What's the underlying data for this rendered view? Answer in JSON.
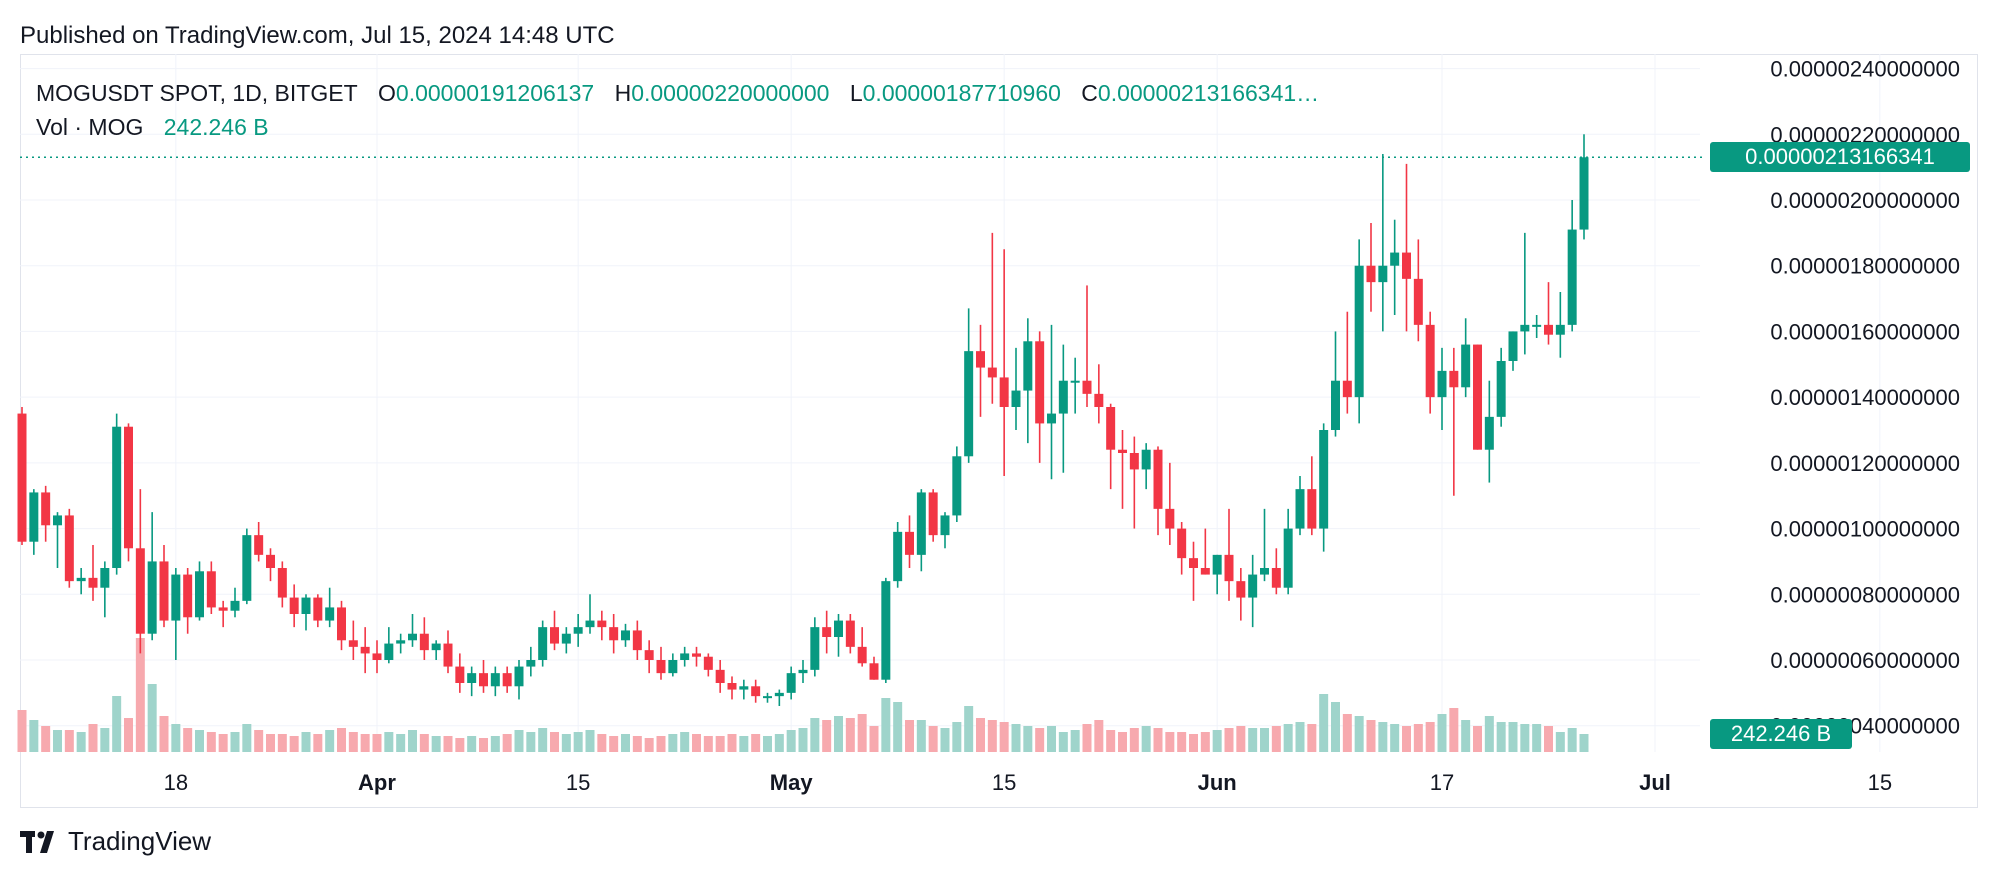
{
  "header": {
    "published": "Published on TradingView.com, Jul 15, 2024 14:48 UTC"
  },
  "legend": {
    "symbol": "MOGUSDT SPOT, 1D, BITGET",
    "open_label": "O",
    "open": "0.0000019120613​7",
    "high_label": "H",
    "high": "0.00000220000000",
    "low_label": "L",
    "low": "0.00000187710960",
    "close_label": "C",
    "close": "0.00000213166341…",
    "vol_label": "Vol · MOG",
    "vol": "242.246 B"
  },
  "last_price_tag": "0.00000213166341",
  "last_volume_tag": "242.246 B",
  "brand": {
    "name": "TradingView"
  },
  "colors": {
    "up": "#089981",
    "down": "#f23645",
    "vol_up": "#9fd4cb",
    "vol_down": "#f7a9ae",
    "grid": "#f0f3fa",
    "axis_text": "#131722"
  },
  "chart_data": {
    "type": "candlestick",
    "title": "",
    "ylim": [
      3.2e-07,
      2.42e-06
    ],
    "y_ticks": [
      "0.00000240000000",
      "0.00000220000000",
      "0.00000200000000",
      "0.00000180000000",
      "0.00000160000000",
      "0.00000140000000",
      "0.00000120000000",
      "0.00000100000000",
      "0.00000080000000",
      "0.00000060000000",
      "0.00000040000000"
    ],
    "x_labels": [
      "18",
      "Apr",
      "15",
      "May",
      "15",
      "Jun",
      "17",
      "Jul",
      "15"
    ],
    "candles": [
      [
        1.35e-06,
        1.37e-06,
        9.5e-07,
        9.6e-07,
        21
      ],
      [
        9.6e-07,
        1.12e-06,
        9.2e-07,
        1.11e-06,
        16
      ],
      [
        1.11e-06,
        1.13e-06,
        9.6e-07,
        1.01e-06,
        13
      ],
      [
        1.01e-06,
        1.05e-06,
        8.8e-07,
        1.04e-06,
        11
      ],
      [
        1.04e-06,
        1.06e-06,
        8.2e-07,
        8.4e-07,
        11
      ],
      [
        8.4e-07,
        8.8e-07,
        8e-07,
        8.5e-07,
        10
      ],
      [
        8.5e-07,
        9.5e-07,
        7.8e-07,
        8.2e-07,
        14
      ],
      [
        8.2e-07,
        9e-07,
        7.3e-07,
        8.8e-07,
        12
      ],
      [
        8.8e-07,
        1.35e-06,
        8.6e-07,
        1.31e-06,
        28
      ],
      [
        1.31e-06,
        1.32e-06,
        9e-07,
        9.4e-07,
        17
      ],
      [
        9.4e-07,
        1.12e-06,
        6.2e-07,
        6.8e-07,
        57
      ],
      [
        6.8e-07,
        1.05e-06,
        6.6e-07,
        9e-07,
        34
      ],
      [
        9e-07,
        9.5e-07,
        7e-07,
        7.2e-07,
        18
      ],
      [
        7.2e-07,
        8.8e-07,
        6e-07,
        8.6e-07,
        14
      ],
      [
        8.6e-07,
        8.8e-07,
        6.8e-07,
        7.3e-07,
        12
      ],
      [
        7.3e-07,
        9e-07,
        7.2e-07,
        8.7e-07,
        11
      ],
      [
        8.7e-07,
        9e-07,
        7.4e-07,
        7.6e-07,
        10
      ],
      [
        7.6e-07,
        7.8e-07,
        7e-07,
        7.5e-07,
        9
      ],
      [
        7.5e-07,
        8.2e-07,
        7.3e-07,
        7.8e-07,
        10
      ],
      [
        7.8e-07,
        1e-06,
        7.7e-07,
        9.8e-07,
        14
      ],
      [
        9.8e-07,
        1.02e-06,
        9e-07,
        9.2e-07,
        11
      ],
      [
        9.2e-07,
        9.4e-07,
        8.4e-07,
        8.8e-07,
        9
      ],
      [
        8.8e-07,
        9e-07,
        7.6e-07,
        7.9e-07,
        9
      ],
      [
        7.9e-07,
        8.3e-07,
        7e-07,
        7.4e-07,
        8
      ],
      [
        7.4e-07,
        8e-07,
        6.9e-07,
        7.9e-07,
        10
      ],
      [
        7.9e-07,
        8e-07,
        7e-07,
        7.2e-07,
        9
      ],
      [
        7.2e-07,
        8.2e-07,
        7e-07,
        7.6e-07,
        11
      ],
      [
        7.6e-07,
        7.8e-07,
        6.3e-07,
        6.6e-07,
        12
      ],
      [
        6.6e-07,
        7.2e-07,
        6e-07,
        6.4e-07,
        10
      ],
      [
        6.4e-07,
        7e-07,
        5.6e-07,
        6.2e-07,
        9
      ],
      [
        6.2e-07,
        6.6e-07,
        5.6e-07,
        6e-07,
        9
      ],
      [
        6e-07,
        7e-07,
        5.9e-07,
        6.5e-07,
        10
      ],
      [
        6.5e-07,
        6.8e-07,
        6.2e-07,
        6.6e-07,
        9
      ],
      [
        6.6e-07,
        7.4e-07,
        6.4e-07,
        6.8e-07,
        11
      ],
      [
        6.8e-07,
        7.3e-07,
        6e-07,
        6.3e-07,
        9
      ],
      [
        6.3e-07,
        6.6e-07,
        6e-07,
        6.5e-07,
        8
      ],
      [
        6.5e-07,
        6.9e-07,
        5.6e-07,
        5.8e-07,
        8
      ],
      [
        5.8e-07,
        6.2e-07,
        5e-07,
        5.3e-07,
        7
      ],
      [
        5.3e-07,
        5.8e-07,
        4.9e-07,
        5.6e-07,
        8
      ],
      [
        5.6e-07,
        6e-07,
        5e-07,
        5.2e-07,
        7
      ],
      [
        5.2e-07,
        5.8e-07,
        4.9e-07,
        5.6e-07,
        8
      ],
      [
        5.6e-07,
        5.8e-07,
        5e-07,
        5.2e-07,
        9
      ],
      [
        5.2e-07,
        6e-07,
        4.8e-07,
        5.8e-07,
        11
      ],
      [
        5.8e-07,
        6.4e-07,
        5.5e-07,
        6e-07,
        10
      ],
      [
        6e-07,
        7.2e-07,
        5.8e-07,
        7e-07,
        12
      ],
      [
        7e-07,
        7.5e-07,
        6.3e-07,
        6.5e-07,
        10
      ],
      [
        6.5e-07,
        7e-07,
        6.2e-07,
        6.8e-07,
        9
      ],
      [
        6.8e-07,
        7.4e-07,
        6.4e-07,
        7e-07,
        10
      ],
      [
        7e-07,
        8e-07,
        6.8e-07,
        7.2e-07,
        11
      ],
      [
        7.2e-07,
        7.5e-07,
        6.6e-07,
        7e-07,
        9
      ],
      [
        7e-07,
        7.4e-07,
        6.2e-07,
        6.6e-07,
        8
      ],
      [
        6.6e-07,
        7.1e-07,
        6.4e-07,
        6.9e-07,
        9
      ],
      [
        6.9e-07,
        7.2e-07,
        6e-07,
        6.3e-07,
        8
      ],
      [
        6.3e-07,
        6.6e-07,
        5.6e-07,
        6e-07,
        7
      ],
      [
        6e-07,
        6.4e-07,
        5.4e-07,
        5.6e-07,
        8
      ],
      [
        5.6e-07,
        6.2e-07,
        5.5e-07,
        6e-07,
        9
      ],
      [
        6e-07,
        6.4e-07,
        5.8e-07,
        6.2e-07,
        10
      ],
      [
        6.2e-07,
        6.4e-07,
        5.8e-07,
        6.1e-07,
        9
      ],
      [
        6.1e-07,
        6.2e-07,
        5.5e-07,
        5.7e-07,
        8
      ],
      [
        5.7e-07,
        6e-07,
        5e-07,
        5.3e-07,
        8
      ],
      [
        5.3e-07,
        5.5e-07,
        4.8e-07,
        5.1e-07,
        9
      ],
      [
        5.1e-07,
        5.4e-07,
        4.8e-07,
        5.2e-07,
        8
      ],
      [
        5.2e-07,
        5.4e-07,
        4.7e-07,
        4.9e-07,
        9
      ],
      [
        4.9e-07,
        5e-07,
        4.7e-07,
        4.9e-07,
        8
      ],
      [
        4.9e-07,
        5.1e-07,
        4.6e-07,
        5e-07,
        9
      ],
      [
        5e-07,
        5.8e-07,
        4.8e-07,
        5.6e-07,
        11
      ],
      [
        5.6e-07,
        6e-07,
        5.3e-07,
        5.7e-07,
        12
      ],
      [
        5.7e-07,
        7.3e-07,
        5.5e-07,
        7e-07,
        17
      ],
      [
        7e-07,
        7.5e-07,
        6.2e-07,
        6.7e-07,
        16
      ],
      [
        6.7e-07,
        7.4e-07,
        6.1e-07,
        7.2e-07,
        18
      ],
      [
        7.2e-07,
        7.4e-07,
        6.2e-07,
        6.4e-07,
        17
      ],
      [
        6.4e-07,
        7e-07,
        5.8e-07,
        5.9e-07,
        19
      ],
      [
        5.9e-07,
        6.1e-07,
        5.4e-07,
        5.4e-07,
        13
      ],
      [
        5.4e-07,
        8.5e-07,
        5.3e-07,
        8.4e-07,
        27
      ],
      [
        8.4e-07,
        1.02e-06,
        8.2e-07,
        9.9e-07,
        25
      ],
      [
        9.9e-07,
        1.04e-06,
        8.8e-07,
        9.2e-07,
        16
      ],
      [
        9.2e-07,
        1.12e-06,
        8.7e-07,
        1.11e-06,
        16
      ],
      [
        1.11e-06,
        1.12e-06,
        9.6e-07,
        9.8e-07,
        13
      ],
      [
        9.8e-07,
        1.05e-06,
        9.4e-07,
        1.04e-06,
        12
      ],
      [
        1.04e-06,
        1.25e-06,
        1.02e-06,
        1.22e-06,
        15
      ],
      [
        1.22e-06,
        1.67e-06,
        1.2e-06,
        1.54e-06,
        23
      ],
      [
        1.54e-06,
        1.62e-06,
        1.34e-06,
        1.49e-06,
        17
      ],
      [
        1.49e-06,
        1.9e-06,
        1.38e-06,
        1.46e-06,
        16
      ],
      [
        1.46e-06,
        1.85e-06,
        1.16e-06,
        1.37e-06,
        15
      ],
      [
        1.37e-06,
        1.55e-06,
        1.3e-06,
        1.42e-06,
        14
      ],
      [
        1.42e-06,
        1.64e-06,
        1.26e-06,
        1.57e-06,
        13
      ],
      [
        1.57e-06,
        1.6e-06,
        1.2e-06,
        1.32e-06,
        12
      ],
      [
        1.32e-06,
        1.62e-06,
        1.15e-06,
        1.35e-06,
        13
      ],
      [
        1.35e-06,
        1.56e-06,
        1.17e-06,
        1.45e-06,
        10
      ],
      [
        1.45e-06,
        1.52e-06,
        1.35e-06,
        1.45e-06,
        11
      ],
      [
        1.45e-06,
        1.74e-06,
        1.37e-06,
        1.41e-06,
        14
      ],
      [
        1.41e-06,
        1.5e-06,
        1.32e-06,
        1.37e-06,
        16
      ],
      [
        1.37e-06,
        1.38e-06,
        1.12e-06,
        1.24e-06,
        11
      ],
      [
        1.24e-06,
        1.3e-06,
        1.06e-06,
        1.23e-06,
        10
      ],
      [
        1.23e-06,
        1.28e-06,
        1e-06,
        1.18e-06,
        12
      ],
      [
        1.18e-06,
        1.26e-06,
        1.12e-06,
        1.24e-06,
        13
      ],
      [
        1.24e-06,
        1.25e-06,
        9.8e-07,
        1.06e-06,
        12
      ],
      [
        1.06e-06,
        1.2e-06,
        9.5e-07,
        1e-06,
        10
      ],
      [
        1e-06,
        1.02e-06,
        8.6e-07,
        9.1e-07,
        10
      ],
      [
        9.1e-07,
        9.6e-07,
        7.8e-07,
        8.8e-07,
        9
      ],
      [
        8.8e-07,
        1e-06,
        8.6e-07,
        8.6e-07,
        10
      ],
      [
        8.6e-07,
        9.2e-07,
        8e-07,
        9.2e-07,
        11
      ],
      [
        9.2e-07,
        1.06e-06,
        7.8e-07,
        8.4e-07,
        12
      ],
      [
        8.4e-07,
        8.8e-07,
        7.2e-07,
        7.9e-07,
        13
      ],
      [
        7.9e-07,
        9.2e-07,
        7e-07,
        8.6e-07,
        12
      ],
      [
        8.6e-07,
        1.06e-06,
        8.4e-07,
        8.8e-07,
        12
      ],
      [
        8.8e-07,
        9.4e-07,
        8e-07,
        8.2e-07,
        13
      ],
      [
        8.2e-07,
        1.06e-06,
        8e-07,
        1e-06,
        14
      ],
      [
        1e-06,
        1.16e-06,
        9.8e-07,
        1.12e-06,
        15
      ],
      [
        1.12e-06,
        1.22e-06,
        9.8e-07,
        1e-06,
        14
      ],
      [
        1e-06,
        1.32e-06,
        9.3e-07,
        1.3e-06,
        29
      ],
      [
        1.3e-06,
        1.6e-06,
        1.28e-06,
        1.45e-06,
        25
      ],
      [
        1.45e-06,
        1.66e-06,
        1.35e-06,
        1.4e-06,
        19
      ],
      [
        1.4e-06,
        1.88e-06,
        1.32e-06,
        1.8e-06,
        18
      ],
      [
        1.8e-06,
        1.93e-06,
        1.66e-06,
        1.75e-06,
        16
      ],
      [
        1.75e-06,
        2.14e-06,
        1.6e-06,
        1.8e-06,
        15
      ],
      [
        1.8e-06,
        1.94e-06,
        1.65e-06,
        1.84e-06,
        14
      ],
      [
        1.84e-06,
        2.11e-06,
        1.6e-06,
        1.76e-06,
        13
      ],
      [
        1.76e-06,
        1.88e-06,
        1.57e-06,
        1.62e-06,
        14
      ],
      [
        1.62e-06,
        1.66e-06,
        1.35e-06,
        1.4e-06,
        15
      ],
      [
        1.4e-06,
        1.55e-06,
        1.3e-06,
        1.48e-06,
        19
      ],
      [
        1.48e-06,
        1.55e-06,
        1.1e-06,
        1.43e-06,
        22
      ],
      [
        1.43e-06,
        1.64e-06,
        1.4e-06,
        1.56e-06,
        16
      ],
      [
        1.56e-06,
        1.56e-06,
        1.24e-06,
        1.24e-06,
        13
      ],
      [
        1.24e-06,
        1.45e-06,
        1.14e-06,
        1.34e-06,
        18
      ],
      [
        1.34e-06,
        1.55e-06,
        1.31e-06,
        1.51e-06,
        15
      ],
      [
        1.51e-06,
        1.6e-06,
        1.48e-06,
        1.6e-06,
        15
      ],
      [
        1.6e-06,
        1.9e-06,
        1.53e-06,
        1.62e-06,
        14
      ],
      [
        1.62e-06,
        1.65e-06,
        1.58e-06,
        1.62e-06,
        14
      ],
      [
        1.62e-06,
        1.75e-06,
        1.56e-06,
        1.59e-06,
        13
      ],
      [
        1.59e-06,
        1.72e-06,
        1.52e-06,
        1.62e-06,
        10
      ],
      [
        1.62e-06,
        2e-06,
        1.6e-06,
        1.91e-06,
        12
      ],
      [
        1.91e-06,
        2.2e-06,
        1.88e-06,
        2.13e-06,
        9
      ]
    ]
  }
}
